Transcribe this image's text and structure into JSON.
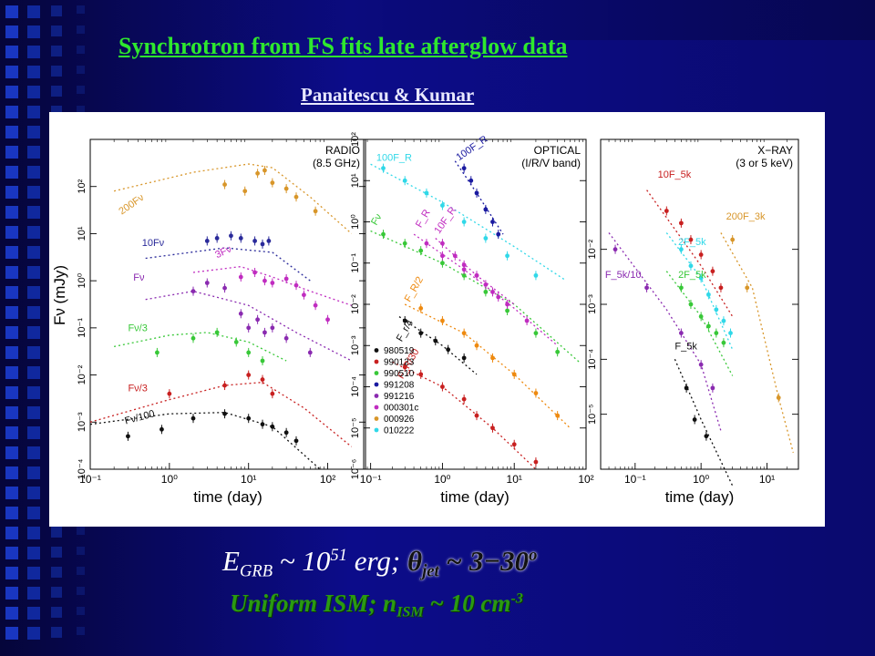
{
  "slide": {
    "title": "Synchrotron  from FS fits late afterglow data",
    "author": "Panaitescu & Kumar",
    "eq1": {
      "e": "E",
      "e_sub": "GRB",
      "mid": " ~ 10",
      "exp": "51",
      "erg": " erg;  ",
      "theta": "θ",
      "theta_sub": "jet",
      "tail": "  ~ 3−30",
      "deg": "o"
    },
    "eq2": {
      "a": "Uniform ISM; n",
      "a_sub": "ISM",
      "b": " ~ 10 cm",
      "b_sup": "-3"
    }
  },
  "chart_data": [
    {
      "type": "scatter",
      "title": "RADIO (8.5 GHz)",
      "title_lines": [
        "RADIO",
        "(8.5 GHz)"
      ],
      "xlabel": "time (day)",
      "ylabel": "Fν (mJy)",
      "xscale": "log",
      "yscale": "log",
      "xlim": [
        0.1,
        300
      ],
      "ylim": [
        0.0001,
        1000
      ],
      "xticks": [
        {
          "v": 0.1,
          "t": "10⁻¹"
        },
        {
          "v": 1,
          "t": "10⁰"
        },
        {
          "v": 10,
          "t": "10¹"
        },
        {
          "v": 100,
          "t": "10²"
        }
      ],
      "yticks": [
        {
          "v": 0.0001,
          "t": "10⁻⁴"
        },
        {
          "v": 0.001,
          "t": "10⁻³"
        },
        {
          "v": 0.01,
          "t": "10⁻²"
        },
        {
          "v": 0.1,
          "t": "10⁻¹"
        },
        {
          "v": 1,
          "t": "10⁰"
        },
        {
          "v": 10,
          "t": "10¹"
        },
        {
          "v": 100,
          "t": "10²"
        }
      ],
      "series": [
        {
          "label": "200Fν",
          "color": "#d8962a",
          "lx": 0.25,
          "ly": 25,
          "rot": -35,
          "x": [
            5,
            9,
            13,
            16,
            20,
            30,
            40,
            70
          ],
          "y": [
            110,
            80,
            190,
            220,
            120,
            90,
            60,
            30
          ],
          "model_x": [
            0.2,
            2,
            10,
            20,
            60,
            200
          ],
          "model_y": [
            80,
            200,
            300,
            250,
            60,
            10
          ]
        },
        {
          "label": "10Fν",
          "color": "#2a2a9a",
          "lx": 0.45,
          "ly": 5.5,
          "rot": 0,
          "x": [
            3,
            4,
            6,
            8,
            12,
            15,
            18
          ],
          "y": [
            7,
            8,
            9,
            8,
            7,
            6,
            7
          ],
          "model_x": [
            0.5,
            5,
            20,
            60
          ],
          "model_y": [
            3,
            5,
            4,
            1
          ]
        },
        {
          "label": "3Fν",
          "color": "#c02cc0",
          "lx": 4,
          "ly": 3,
          "rot": -25,
          "x": [
            8,
            12,
            16,
            20,
            30,
            40,
            50,
            70,
            100
          ],
          "y": [
            1.2,
            1.5,
            1.0,
            0.9,
            1.1,
            0.8,
            0.5,
            0.3,
            0.15
          ],
          "model_x": [
            2,
            8,
            20,
            60,
            200
          ],
          "model_y": [
            1.5,
            2,
            1.2,
            0.6,
            0.3
          ]
        },
        {
          "label": "Fν",
          "color": "#8a2ab0",
          "lx": 0.35,
          "ly": 1.0,
          "rot": 0,
          "x": [
            2,
            3,
            5,
            8,
            10,
            13,
            16,
            20,
            30,
            60
          ],
          "y": [
            0.6,
            0.9,
            0.7,
            0.2,
            0.1,
            0.15,
            0.08,
            0.1,
            0.06,
            0.03
          ],
          "model_x": [
            0.5,
            2,
            10,
            40,
            200
          ],
          "model_y": [
            0.4,
            0.6,
            0.3,
            0.08,
            0.02
          ]
        },
        {
          "label": "Fν/3",
          "color": "#38c838",
          "lx": 0.3,
          "ly": 0.085,
          "rot": 0,
          "x": [
            0.7,
            2,
            4,
            7,
            10,
            15
          ],
          "y": [
            0.03,
            0.06,
            0.08,
            0.05,
            0.03,
            0.02
          ],
          "model_x": [
            0.2,
            1,
            3,
            10,
            30
          ],
          "model_y": [
            0.04,
            0.07,
            0.08,
            0.05,
            0.02
          ]
        },
        {
          "label": "Fν/3",
          "color": "#c82020",
          "lx": 0.3,
          "ly": 0.0045,
          "rot": 0,
          "x": [
            1,
            5,
            10,
            15,
            20
          ],
          "y": [
            0.004,
            0.006,
            0.01,
            0.008,
            0.004
          ],
          "model_x": [
            0.1,
            1,
            5,
            15,
            50,
            200
          ],
          "model_y": [
            0.001,
            0.003,
            0.006,
            0.007,
            0.002,
            0.0003
          ]
        },
        {
          "label": "Fν/100",
          "color": "#101010",
          "lx": 0.28,
          "ly": 0.0009,
          "rot": -15,
          "x": [
            0.3,
            0.8,
            2,
            5,
            10,
            15,
            20,
            30,
            40
          ],
          "y": [
            0.0005,
            0.0007,
            0.0012,
            0.0015,
            0.0012,
            0.0009,
            0.0008,
            0.0006,
            0.0004
          ],
          "model_x": [
            0.1,
            1,
            5,
            20,
            80
          ],
          "model_y": [
            0.0009,
            0.0015,
            0.0016,
            0.0008,
            0.0001
          ]
        }
      ]
    },
    {
      "type": "scatter",
      "title": "OPTICAL (I/R/V band)",
      "title_lines": [
        "OPTICAL",
        "(I/R/V band)"
      ],
      "xlabel": "time (day)",
      "ylabel": "",
      "xscale": "log",
      "yscale": "log",
      "xlim": [
        0.08,
        100
      ],
      "ylim": [
        1e-06,
        100
      ],
      "xticks": [
        {
          "v": 0.1,
          "t": "10⁻¹"
        },
        {
          "v": 1,
          "t": "10⁰"
        },
        {
          "v": 10,
          "t": "10¹"
        },
        {
          "v": 100,
          "t": "10²"
        }
      ],
      "yticks": [
        {
          "v": 1e-06,
          "t": "10⁻⁶"
        },
        {
          "v": 1e-05,
          "t": "10⁻⁵"
        },
        {
          "v": 0.0001,
          "t": "10⁻⁴"
        },
        {
          "v": 0.001,
          "t": "10⁻³"
        },
        {
          "v": 0.01,
          "t": "10⁻²"
        },
        {
          "v": 0.1,
          "t": "10⁻¹"
        },
        {
          "v": 1,
          "t": "10⁰"
        },
        {
          "v": 10,
          "t": "10¹"
        },
        {
          "v": 100,
          "t": "10²"
        }
      ],
      "series": [
        {
          "label": "100F_R",
          "color": "#30d8e8",
          "lx": 0.12,
          "ly": 30,
          "rot": 0,
          "x": [
            0.15,
            0.3,
            0.6,
            1,
            2,
            4,
            8,
            20
          ],
          "y": [
            20,
            10,
            5,
            2.5,
            1,
            0.4,
            0.15,
            0.05
          ],
          "model_x": [
            0.1,
            1,
            10,
            50
          ],
          "model_y": [
            25,
            3,
            0.25,
            0.04
          ]
        },
        {
          "label": "100F_R",
          "color": "#1a1aa0",
          "lx": 1.7,
          "ly": 30,
          "rot": -35,
          "x": [
            2,
            2.5,
            3,
            4,
            5,
            6
          ],
          "y": [
            20,
            10,
            5,
            2,
            1,
            0.5
          ],
          "model_x": [
            1.5,
            3,
            7
          ],
          "model_y": [
            30,
            5,
            0.5
          ]
        },
        {
          "label": "Fν",
          "color": "#38c838",
          "lx": 0.12,
          "ly": 0.8,
          "rot": -60,
          "x": [
            0.15,
            0.3,
            0.5,
            1,
            2,
            4,
            8,
            20,
            40
          ],
          "y": [
            0.5,
            0.3,
            0.2,
            0.1,
            0.05,
            0.02,
            0.007,
            0.002,
            0.0007
          ],
          "model_x": [
            0.1,
            1,
            10,
            80
          ],
          "model_y": [
            0.6,
            0.1,
            0.01,
            0.0004
          ]
        },
        {
          "label": "F_R",
          "color": "#c02cc0",
          "lx": 0.5,
          "ly": 0.7,
          "rot": -60,
          "x": [
            0.6,
            1,
            2,
            3,
            5,
            8,
            15
          ],
          "y": [
            0.3,
            0.15,
            0.07,
            0.05,
            0.02,
            0.01,
            0.004
          ],
          "model_x": [
            0.4,
            2,
            10,
            40
          ],
          "model_y": [
            0.5,
            0.07,
            0.008,
            0.001
          ]
        },
        {
          "label": "10F_R",
          "color": "#c02cc0",
          "lx": 0.9,
          "ly": 0.5,
          "rot": -55,
          "x": [
            1,
            1.5,
            2,
            3,
            4,
            6
          ],
          "y": [
            0.3,
            0.15,
            0.09,
            0.05,
            0.03,
            0.015
          ],
          "model_x": [
            0.8,
            3,
            10
          ],
          "model_y": [
            0.4,
            0.05,
            0.01
          ]
        },
        {
          "label": "F_R/2",
          "color": "#ee8a10",
          "lx": 0.35,
          "ly": 0.011,
          "rot": -60,
          "x": [
            0.5,
            1,
            2,
            3,
            5,
            10,
            20,
            40
          ],
          "y": [
            0.008,
            0.004,
            0.002,
            0.001,
            0.0005,
            0.0002,
            7e-05,
            2e-05
          ],
          "model_x": [
            0.3,
            2,
            10,
            60
          ],
          "model_y": [
            0.01,
            0.002,
            0.0002,
            1e-05
          ]
        },
        {
          "label": "F_r/4",
          "color": "#101010",
          "lx": 0.27,
          "ly": 0.0012,
          "rot": -60,
          "x": [
            0.3,
            0.5,
            0.8,
            1.2,
            2
          ],
          "y": [
            0.004,
            0.002,
            0.0013,
            0.0008,
            0.0005
          ],
          "model_x": [
            0.25,
            1,
            3
          ],
          "model_y": [
            0.005,
            0.001,
            0.0002
          ]
        },
        {
          "label": "F_R/30",
          "color": "#c82020",
          "lx": 0.28,
          "ly": 0.00015,
          "rot": -60,
          "x": [
            0.3,
            0.5,
            1,
            2,
            3,
            5,
            10,
            20
          ],
          "y": [
            0.0003,
            0.0002,
            0.0001,
            5e-05,
            2e-05,
            1e-05,
            4e-06,
            1.5e-06
          ],
          "model_x": [
            0.2,
            1,
            5,
            20
          ],
          "model_y": [
            0.0004,
            0.0001,
            1e-05,
            1e-06
          ]
        }
      ],
      "legend": {
        "placement": "bottom-left",
        "entries": [
          {
            "name": "980519",
            "color": "#101010"
          },
          {
            "name": "990123",
            "color": "#c82020"
          },
          {
            "name": "990510",
            "color": "#38c838"
          },
          {
            "name": "991208",
            "color": "#1a1aa0"
          },
          {
            "name": "991216",
            "color": "#8a2ab0"
          },
          {
            "name": "000301c",
            "color": "#c02cc0"
          },
          {
            "name": "000926",
            "color": "#d8962a"
          },
          {
            "name": "010222",
            "color": "#30d8e8"
          }
        ]
      }
    },
    {
      "type": "scatter",
      "title": "X-RAY (3 or 5 keV)",
      "title_lines": [
        "X−RAY",
        "(3 or 5 keV)"
      ],
      "xlabel": "time (day)",
      "ylabel": "",
      "xscale": "log",
      "yscale": "log",
      "xlim": [
        0.03,
        30
      ],
      "ylim": [
        1e-06,
        1
      ],
      "xticks": [
        {
          "v": 0.1,
          "t": "10⁻¹"
        },
        {
          "v": 1,
          "t": "10⁰"
        },
        {
          "v": 10,
          "t": "10¹"
        }
      ],
      "yticks": [
        {
          "v": 1e-05,
          "t": "10⁻⁵"
        },
        {
          "v": 0.0001,
          "t": "10⁻⁴"
        },
        {
          "v": 0.001,
          "t": "10⁻³"
        },
        {
          "v": 0.01,
          "t": "10⁻²"
        }
      ],
      "series": [
        {
          "label": "10F_5k",
          "color": "#c82020",
          "lx": 0.22,
          "ly": 0.2,
          "rot": 0,
          "x": [
            0.3,
            0.5,
            0.7,
            1,
            1.5,
            2
          ],
          "y": [
            0.05,
            0.03,
            0.015,
            0.008,
            0.004,
            0.002
          ],
          "model_x": [
            0.15,
            1,
            3
          ],
          "model_y": [
            0.12,
            0.005,
            0.0006
          ]
        },
        {
          "label": "200F_3k",
          "color": "#d8962a",
          "lx": 2.4,
          "ly": 0.035,
          "rot": 0,
          "x": [
            3,
            5,
            15
          ],
          "y": [
            0.015,
            0.002,
            2e-05
          ],
          "model_x": [
            2,
            6,
            15,
            25
          ],
          "model_y": [
            0.02,
            0.002,
            2e-05,
            2e-06
          ]
        },
        {
          "label": "2F_5k",
          "color": "#30d8e8",
          "lx": 0.45,
          "ly": 0.012,
          "rot": 0,
          "x": [
            0.5,
            0.7,
            1,
            1.3,
            1.7,
            2.2,
            2.8
          ],
          "y": [
            0.01,
            0.005,
            0.003,
            0.0015,
            0.0008,
            0.0005,
            0.0003
          ],
          "model_x": [
            0.3,
            1,
            3
          ],
          "model_y": [
            0.02,
            0.003,
            0.00015
          ]
        },
        {
          "label": "2F_5k",
          "color": "#38c838",
          "lx": 0.45,
          "ly": 0.003,
          "rot": 0,
          "x": [
            0.5,
            0.7,
            1,
            1.3,
            1.7,
            2.2
          ],
          "y": [
            0.002,
            0.001,
            0.0006,
            0.0004,
            0.0003,
            0.0002
          ],
          "model_x": [
            0.3,
            1,
            3
          ],
          "model_y": [
            0.004,
            0.0006,
            5e-05
          ]
        },
        {
          "label": "F_5k/10",
          "color": "#8a2ab0",
          "lx": 0.035,
          "ly": 0.003,
          "rot": 0,
          "x": [
            0.05,
            0.15,
            0.5,
            1,
            1.5
          ],
          "y": [
            0.01,
            0.002,
            0.0003,
            8e-05,
            3e-05
          ],
          "model_x": [
            0.04,
            0.3,
            1,
            2
          ],
          "model_y": [
            0.02,
            0.0008,
            8e-05,
            5e-06
          ]
        },
        {
          "label": "F_5k",
          "color": "#101010",
          "lx": 0.4,
          "ly": 0.00015,
          "rot": 0,
          "x": [
            0.6,
            0.8,
            1.2
          ],
          "y": [
            3e-05,
            8e-06,
            4e-06
          ],
          "model_x": [
            0.4,
            1,
            3
          ],
          "model_y": [
            0.0001,
            8e-06,
            5e-07
          ]
        }
      ]
    }
  ]
}
